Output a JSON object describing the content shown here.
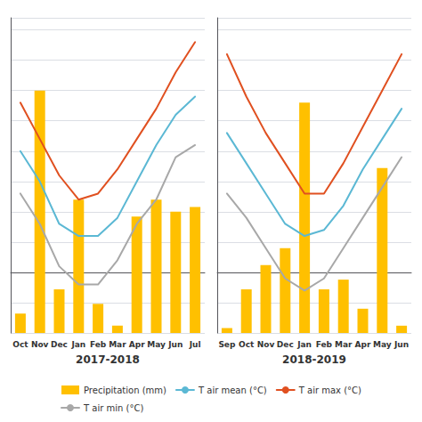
{
  "chart_data": [
    {
      "type": "bar",
      "xlabel": "2017-2018",
      "categories": [
        "Oct",
        "Nov",
        "Dec",
        "Jan",
        "Feb",
        "Mar",
        "Apr",
        "May",
        "Jun",
        "Jul"
      ],
      "series": [
        {
          "name": "Precipitation (mm)",
          "type": "bar",
          "axis": "y2",
          "color": "#FFC000",
          "values": [
            8,
            100,
            18,
            55,
            12,
            3,
            48,
            55,
            50,
            52
          ]
        },
        {
          "name": "T air mean (°C)",
          "type": "line",
          "color": "#5BB8D4",
          "values": [
            20,
            15,
            8,
            6,
            6,
            9,
            15,
            21,
            26,
            29
          ]
        },
        {
          "name": "T air max (°C)",
          "type": "line",
          "color": "#E05020",
          "values": [
            28,
            22,
            16,
            12,
            13,
            17,
            22,
            27,
            33,
            38
          ]
        },
        {
          "name": "T air min (°C)",
          "type": "line",
          "color": "#A8A8A8",
          "values": [
            13,
            8,
            1,
            -2,
            -2,
            2,
            8,
            12,
            19,
            21
          ]
        }
      ],
      "ylim": [
        -10,
        42
      ],
      "yticks": [
        -10,
        -5,
        0,
        5,
        10,
        15,
        20,
        25,
        30,
        35,
        40
      ],
      "y2lim": [
        0,
        130
      ],
      "grid": true,
      "tick_labels": "x",
      "legend": "bottom"
    },
    {
      "type": "bar",
      "xlabel": "2018-2019",
      "categories": [
        "Sep",
        "Oct",
        "Nov",
        "Dec",
        "Jan",
        "Feb",
        "Mar",
        "Apr",
        "May",
        "Jun"
      ],
      "series": [
        {
          "name": "Precipitation (mm)",
          "type": "bar",
          "axis": "y2",
          "color": "#FFC000",
          "values": [
            2,
            18,
            28,
            35,
            95,
            18,
            22,
            10,
            68,
            3
          ]
        },
        {
          "name": "T air mean (°C)",
          "type": "line",
          "color": "#5BB8D4",
          "values": [
            23,
            18,
            13,
            8,
            6,
            7,
            11,
            17,
            22,
            27
          ]
        },
        {
          "name": "T air max (°C)",
          "type": "line",
          "color": "#E05020",
          "values": [
            36,
            29,
            23,
            18,
            13,
            13,
            18,
            24,
            30,
            36
          ]
        },
        {
          "name": "T air min (°C)",
          "type": "line",
          "color": "#A8A8A8",
          "values": [
            13,
            9,
            4,
            -1,
            -3,
            -1,
            4,
            9,
            14,
            19
          ]
        }
      ],
      "ylim": [
        -10,
        42
      ],
      "yticks": [
        -10,
        -5,
        0,
        5,
        10,
        15,
        20,
        25,
        30,
        35,
        40
      ],
      "y2lim": [
        0,
        130
      ],
      "grid": true,
      "tick_labels": "x",
      "legend": "bottom"
    }
  ]
}
